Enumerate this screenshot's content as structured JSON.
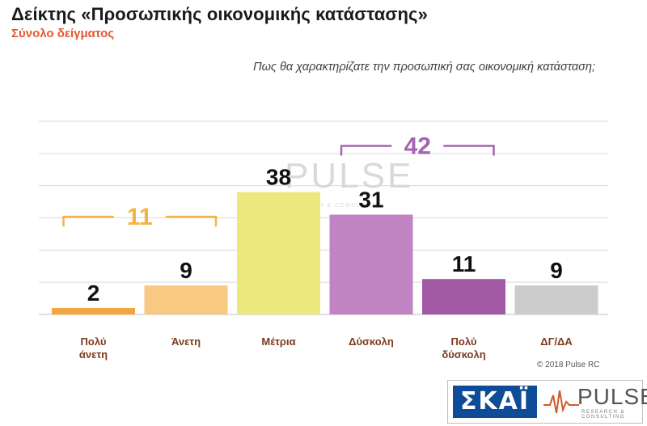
{
  "title": "Δείκτης «Προσωπικής οικονομικής κατάστασης»",
  "subtitle": "Σύνολο δείγματος",
  "question": "Πως θα χαρακτηρίζατε την προσωπική σας οικονομική κατάσταση;",
  "copyright": "© 2018 Pulse RC",
  "watermark": {
    "name": "PULSE",
    "tag": "RESEARCH & CONSULTING"
  },
  "brand": {
    "skai": "ΣΚΑΪ",
    "pulse": "PULSE",
    "pulse_tag": "RESEARCH & CONSULTING"
  },
  "chart_data": {
    "type": "bar",
    "categories": [
      [
        "Πολύ",
        "άνετη"
      ],
      [
        "Άνετη"
      ],
      [
        "Μέτρια"
      ],
      [
        "Δύσκολη"
      ],
      [
        "Πολύ",
        "δύσκολη"
      ],
      [
        "ΔΓ/ΔΑ"
      ]
    ],
    "values": [
      2,
      9,
      38,
      31,
      11,
      9
    ],
    "colors": [
      "#f3a53f",
      "#f8c983",
      "#ebe97e",
      "#c184c2",
      "#a35aa5",
      "#cccccc"
    ],
    "ylim": [
      0,
      60
    ],
    "grid": true,
    "brackets": [
      {
        "from": 0,
        "to": 1,
        "value": "11",
        "color": "#f5b445"
      },
      {
        "from": 3,
        "to": 4,
        "value": "42",
        "color": "#a463b3"
      }
    ]
  }
}
